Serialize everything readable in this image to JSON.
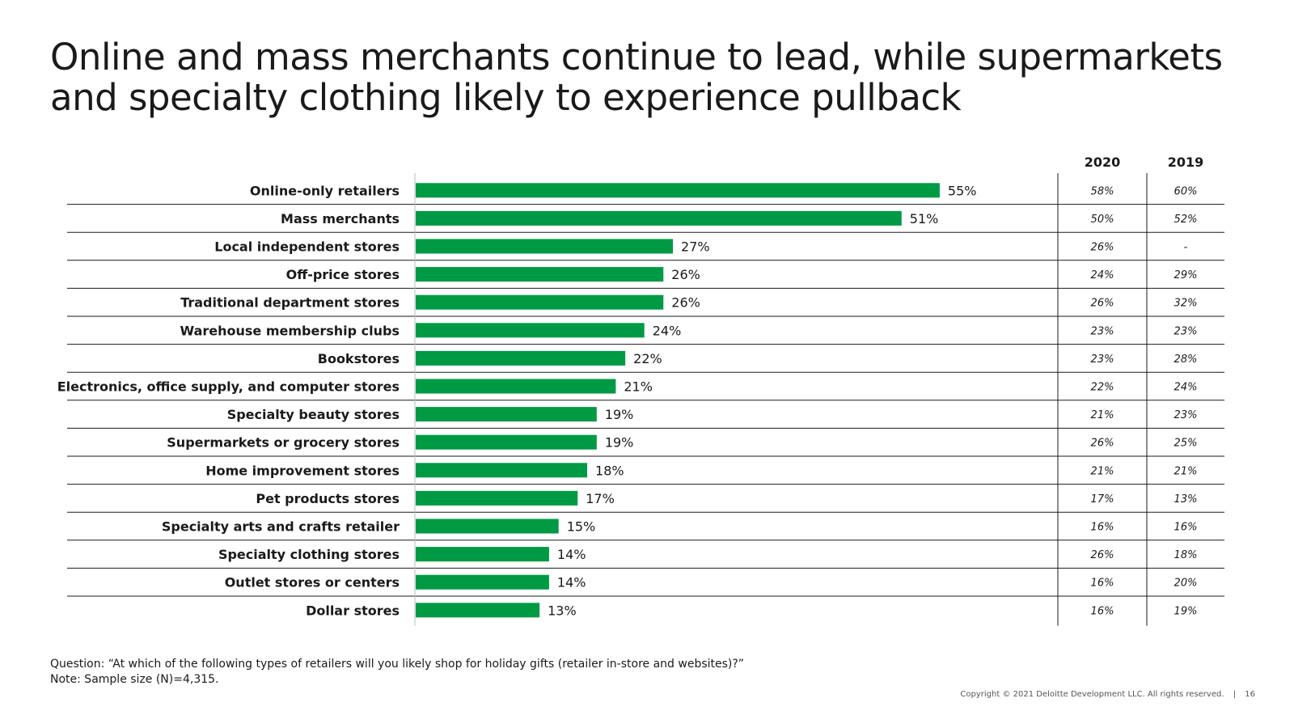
{
  "title": {
    "line1": "Online and mass merchants continue to lead, while supermarkets",
    "line2": "and specialty clothing likely to experience pullback"
  },
  "colors": {
    "bar": "#009A44",
    "line": "#1a1a1a"
  },
  "chart_data": {
    "type": "bar",
    "orientation": "horizontal",
    "title": "",
    "xlabel": "",
    "ylabel": "",
    "xlim": [
      0,
      60
    ],
    "grid": false,
    "value_suffix": "%",
    "comparison_columns": [
      "2020",
      "2019"
    ],
    "rows": [
      {
        "category": "Online-only retailers",
        "value": 55,
        "label": "55%",
        "y2020": "58%",
        "y2019": "60%"
      },
      {
        "category": "Mass merchants",
        "value": 51,
        "label": "51%",
        "y2020": "50%",
        "y2019": "52%"
      },
      {
        "category": "Local independent stores",
        "value": 27,
        "label": "27%",
        "y2020": "26%",
        "y2019": "-"
      },
      {
        "category": "Off-price stores",
        "value": 26,
        "label": "26%",
        "y2020": "24%",
        "y2019": "29%"
      },
      {
        "category": "Traditional department stores",
        "value": 26,
        "label": "26%",
        "y2020": "26%",
        "y2019": "32%"
      },
      {
        "category": "Warehouse membership clubs",
        "value": 24,
        "label": "24%",
        "y2020": "23%",
        "y2019": "23%"
      },
      {
        "category": "Bookstores",
        "value": 22,
        "label": "22%",
        "y2020": "23%",
        "y2019": "28%"
      },
      {
        "category": "Electronics, office supply, and computer stores",
        "value": 21,
        "label": "21%",
        "y2020": "22%",
        "y2019": "24%"
      },
      {
        "category": "Specialty beauty stores",
        "value": 19,
        "label": "19%",
        "y2020": "21%",
        "y2019": "23%"
      },
      {
        "category": "Supermarkets or grocery stores",
        "value": 19,
        "label": "19%",
        "y2020": "26%",
        "y2019": "25%"
      },
      {
        "category": "Home improvement stores",
        "value": 18,
        "label": "18%",
        "y2020": "21%",
        "y2019": "21%"
      },
      {
        "category": "Pet products stores",
        "value": 17,
        "label": "17%",
        "y2020": "17%",
        "y2019": "13%"
      },
      {
        "category": "Specialty arts and crafts retailer",
        "value": 15,
        "label": "15%",
        "y2020": "16%",
        "y2019": "16%"
      },
      {
        "category": "Specialty clothing stores",
        "value": 14,
        "label": "14%",
        "y2020": "26%",
        "y2019": "18%"
      },
      {
        "category": "Outlet stores or centers",
        "value": 14,
        "label": "14%",
        "y2020": "16%",
        "y2019": "20%"
      },
      {
        "category": "Dollar stores",
        "value": 13,
        "label": "13%",
        "y2020": "16%",
        "y2019": "19%"
      }
    ]
  },
  "footnote": {
    "question": "Question: “At which of the following types of retailers will you likely shop for holiday gifts (retailer in-store and websites)?”",
    "note": "Note: Sample size (N)=4,315."
  },
  "copyright": {
    "text": "Copyright © 2021 Deloitte Development LLC. All rights reserved.",
    "separator": "|",
    "page": "16"
  }
}
